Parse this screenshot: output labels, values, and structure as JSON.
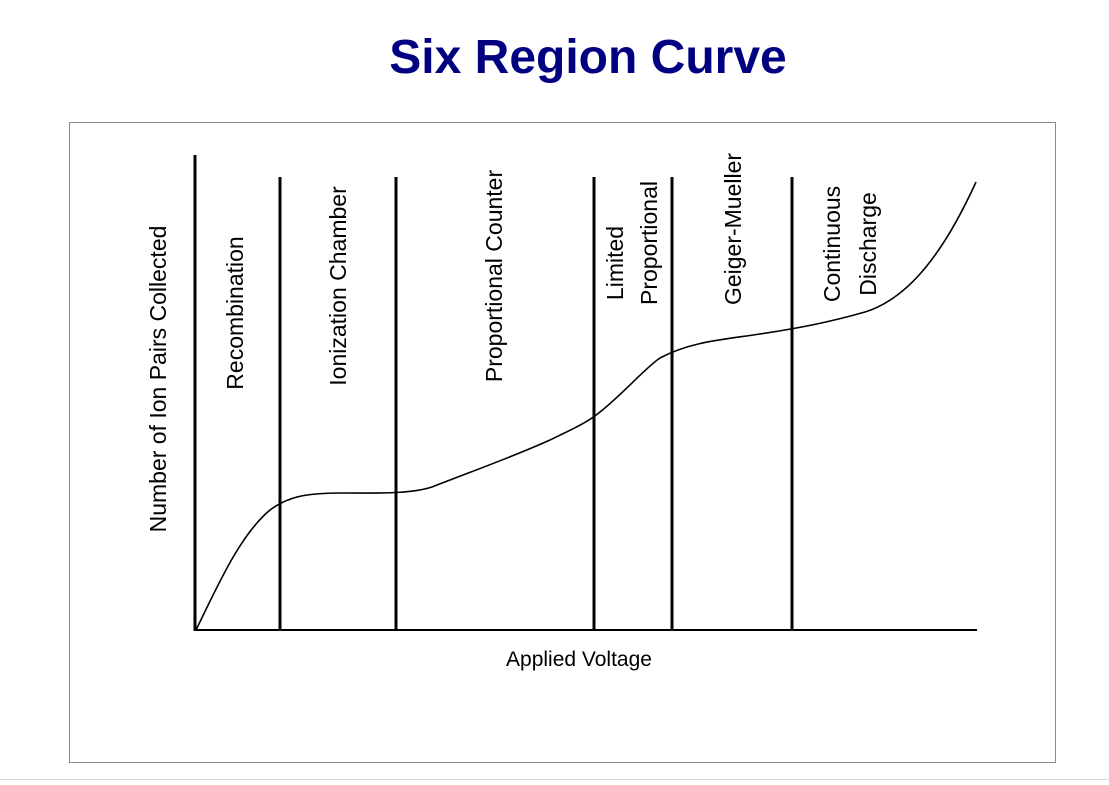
{
  "title": "Six Region Curve",
  "title_color": "#000080",
  "y_axis_label": "Number of Ion Pairs Collected",
  "x_axis_label": "Applied Voltage",
  "regions": [
    {
      "name": "recombination",
      "lines": [
        "Recombination"
      ]
    },
    {
      "name": "ionization-chamber",
      "lines": [
        "Ionization Chamber"
      ]
    },
    {
      "name": "proportional-counter",
      "lines": [
        "Proportional Counter"
      ]
    },
    {
      "name": "limited-proportional",
      "lines": [
        "Limited",
        "Proportional"
      ]
    },
    {
      "name": "geiger-mueller",
      "lines": [
        "Geiger-Mueller"
      ]
    },
    {
      "name": "continuous-discharge",
      "lines": [
        "Continuous",
        "Discharge"
      ]
    }
  ]
}
